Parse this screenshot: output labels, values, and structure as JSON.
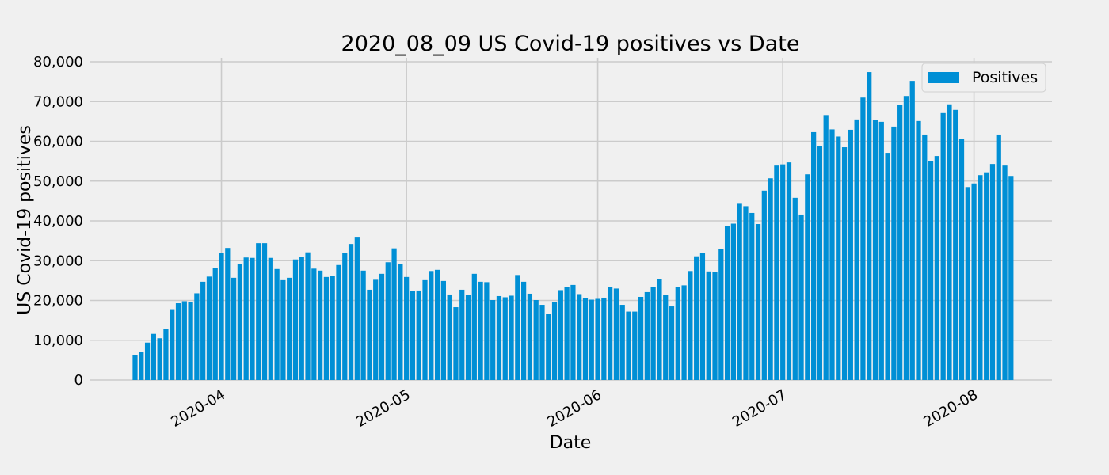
{
  "chart_data": {
    "type": "bar",
    "title": "2020_08_09  US Covid-19 positives vs Date",
    "xlabel": "Date",
    "ylabel": "US Covid-19 positives",
    "ylim": [
      0,
      80000
    ],
    "y_ticks": [
      "0",
      "10,000",
      "20,000",
      "30,000",
      "40,000",
      "50,000",
      "60,000",
      "70,000",
      "80,000"
    ],
    "x_ticks": [
      "2020-04",
      "2020-05",
      "2020-06",
      "2020-07",
      "2020-08"
    ],
    "x_tick_dates": [
      "2020-04-01",
      "2020-05-01",
      "2020-06-01",
      "2020-07-01",
      "2020-08-01"
    ],
    "grid": true,
    "legend_position": "top-right",
    "bar_color": "#008fd5",
    "series": [
      {
        "name": "Positives",
        "start_date": "2020-03-18",
        "values": [
          6200,
          7000,
          9400,
          11600,
          10500,
          12900,
          17800,
          19300,
          19800,
          19700,
          21800,
          24700,
          26000,
          28100,
          32000,
          33200,
          25700,
          29100,
          30800,
          30700,
          34400,
          34400,
          30700,
          27900,
          25100,
          25700,
          30300,
          31000,
          32100,
          28000,
          27500,
          25900,
          26200,
          28900,
          31900,
          34200,
          36000,
          27500,
          22700,
          25200,
          26700,
          29600,
          33100,
          29200,
          25900,
          22400,
          22500,
          25100,
          27400,
          27700,
          24900,
          21500,
          18300,
          22700,
          21300,
          26700,
          24700,
          24600,
          20100,
          21100,
          20800,
          21200,
          26400,
          24700,
          21700,
          20100,
          18900,
          16700,
          19600,
          22600,
          23400,
          23900,
          21600,
          20500,
          20200,
          20400,
          20700,
          23300,
          23000,
          18900,
          17200,
          17200,
          20900,
          22100,
          23400,
          25300,
          21400,
          18500,
          23400,
          23800,
          27400,
          31100,
          32000,
          27300,
          27100,
          33000,
          38800,
          39300,
          44300,
          43700,
          42000,
          39200,
          47600,
          50700,
          53900,
          54200,
          54700,
          45800,
          41600,
          51700,
          62300,
          58900,
          66600,
          63000,
          61200,
          58500,
          62900,
          65500,
          71000,
          77400,
          65300,
          64900,
          57100,
          63700,
          69200,
          71400,
          75200,
          65100,
          61700,
          55000,
          56300,
          67100,
          69300,
          67900,
          60600,
          48500,
          49400,
          51500,
          52200,
          54300,
          61700,
          53900,
          51300
        ]
      }
    ]
  }
}
